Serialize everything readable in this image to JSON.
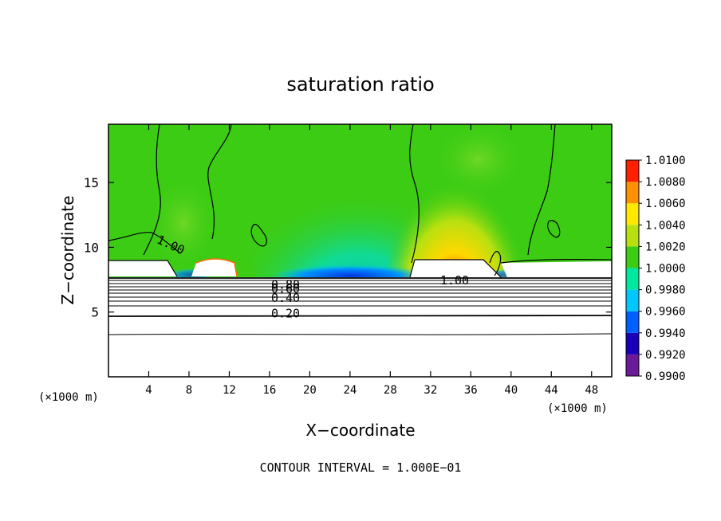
{
  "chart_data": {
    "type": "heatmap",
    "title": "saturation ratio",
    "xlabel": "X−coordinate",
    "ylabel": "Z−coordinate",
    "x_unit": "(×1000 m)",
    "y_unit": "(×1000 m)",
    "xlim": [
      0,
      50
    ],
    "ylim": [
      0,
      19.5
    ],
    "x_ticks": [
      4,
      8,
      12,
      16,
      20,
      24,
      28,
      32,
      36,
      40,
      44,
      48
    ],
    "y_ticks": [
      5,
      10,
      15
    ],
    "colorbar": {
      "levels": [
        "0.9900",
        "0.9920",
        "0.9940",
        "0.9960",
        "0.9980",
        "1.0000",
        "1.0020",
        "1.0040",
        "1.0060",
        "1.0080",
        "1.0100"
      ],
      "colors": [
        "#6a1b9a",
        "#1a00b8",
        "#0060ff",
        "#00c8ff",
        "#00e8a0",
        "#3ccc14",
        "#b8e010",
        "#ffe800",
        "#ff9000",
        "#ff2000",
        "#f08080"
      ]
    },
    "contour_lines": [
      {
        "label": "0.20",
        "z": 4.9
      },
      {
        "label": "0.40",
        "z": 6.1
      },
      {
        "label": "0.60",
        "z": 6.8
      },
      {
        "label": "0.80",
        "z": 7.1
      },
      {
        "label": "1.00",
        "z": 7.6
      }
    ],
    "annotations": [
      "1.00",
      "1.00"
    ],
    "footer": "CONTOUR INTERVAL = 1.000E−01"
  }
}
